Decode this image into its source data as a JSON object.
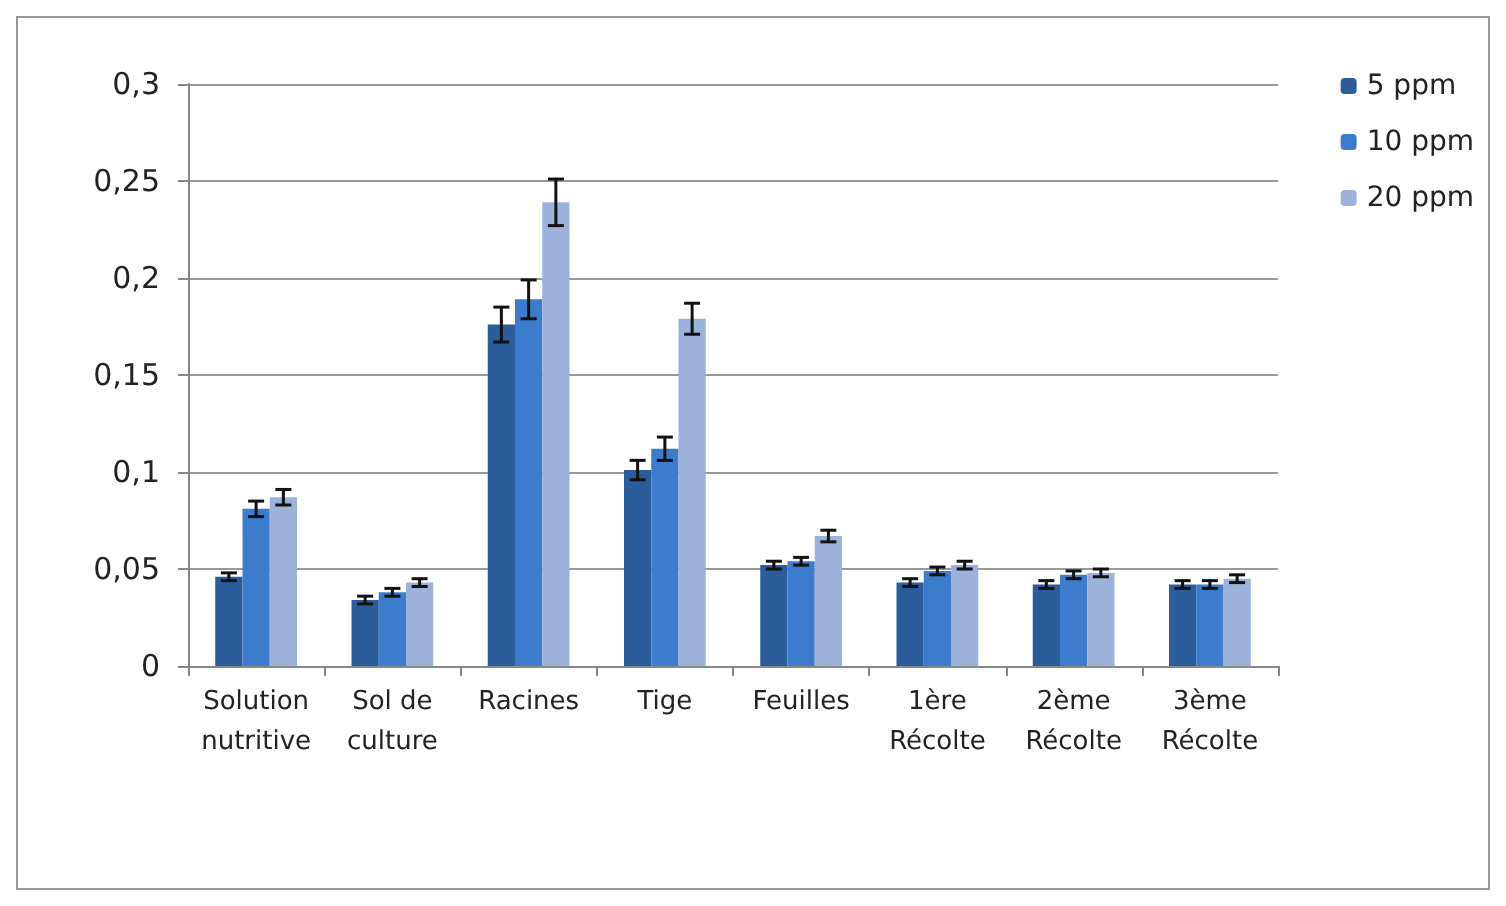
{
  "chart_data": {
    "type": "bar",
    "categories": [
      "Solution\nnutritive",
      "Sol de\nculture",
      "Racines",
      "Tige",
      "Feuilles",
      "1ère\nRécolte",
      "2ème\nRécolte",
      "3ème\nRécolte"
    ],
    "series": [
      {
        "name": "5 ppm",
        "color": "#2b5d9c",
        "values": [
          0.046,
          0.034,
          0.176,
          0.101,
          0.052,
          0.043,
          0.042,
          0.042
        ],
        "errors": [
          0.002,
          0.002,
          0.009,
          0.005,
          0.002,
          0.002,
          0.002,
          0.002
        ]
      },
      {
        "name": "10 ppm",
        "color": "#3d7ccc",
        "values": [
          0.081,
          0.038,
          0.189,
          0.112,
          0.054,
          0.049,
          0.047,
          0.042
        ],
        "errors": [
          0.004,
          0.002,
          0.01,
          0.006,
          0.002,
          0.002,
          0.002,
          0.002
        ]
      },
      {
        "name": "20 ppm",
        "color": "#9cb2da",
        "values": [
          0.087,
          0.043,
          0.239,
          0.179,
          0.067,
          0.052,
          0.048,
          0.045
        ],
        "errors": [
          0.004,
          0.002,
          0.012,
          0.008,
          0.003,
          0.002,
          0.002,
          0.002
        ]
      }
    ],
    "ylim": [
      0,
      0.3
    ],
    "yticks": [
      0,
      {
        "value": 0.05,
        "label": "0,05"
      },
      {
        "value": 0.1,
        "label": "0,1"
      },
      {
        "value": 0.15,
        "label": "0,15"
      },
      {
        "value": 0.2,
        "label": "0,2"
      },
      {
        "value": 0.25,
        "label": "0,25"
      },
      {
        "value": 0.3,
        "label": "0,3"
      }
    ],
    "grid": "y",
    "legend": "top right"
  }
}
